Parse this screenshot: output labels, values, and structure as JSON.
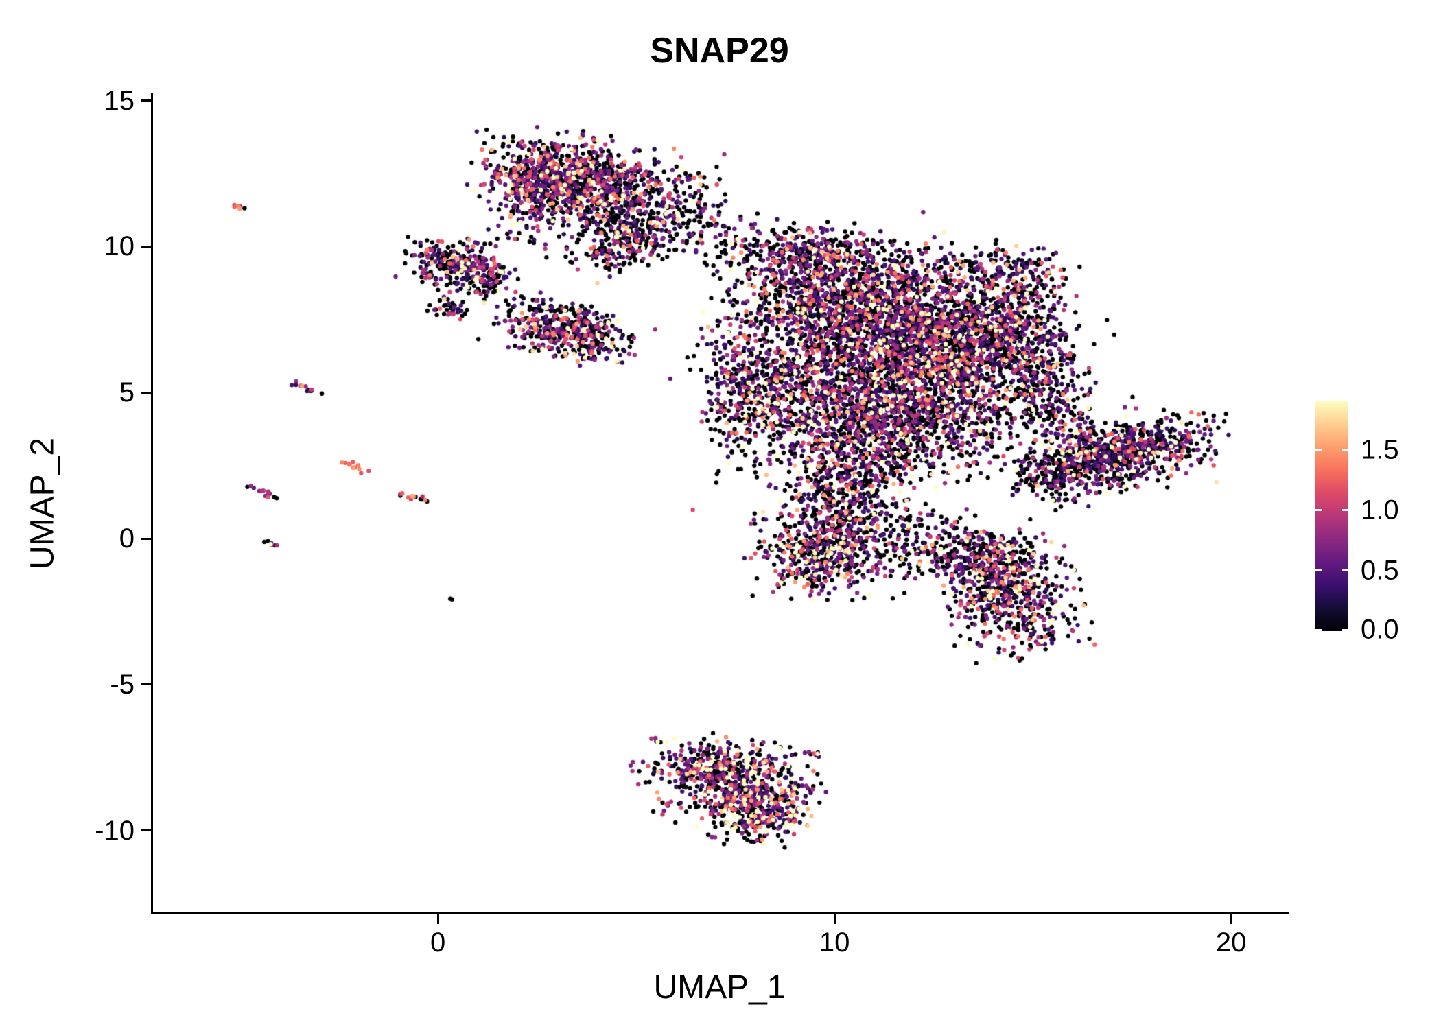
{
  "title": "SNAP29",
  "colors": {
    "background": "#ffffff",
    "axis": "#000000",
    "text": "#000000"
  },
  "chart_data": {
    "type": "scatter",
    "title": "SNAP29",
    "xlabel": "UMAP_1",
    "ylabel": "UMAP_2",
    "xlim": [
      -7.2,
      21.4
    ],
    "ylim": [
      -12.8,
      15.25
    ],
    "grid": false,
    "legend_position": "right",
    "x_ticks": [
      {
        "value": 0,
        "label": "0"
      },
      {
        "value": 10,
        "label": "10"
      },
      {
        "value": 20,
        "label": "20"
      }
    ],
    "y_ticks": [
      {
        "value": 15,
        "label": "15"
      },
      {
        "value": 10,
        "label": "10"
      },
      {
        "value": 5,
        "label": "5"
      },
      {
        "value": 0,
        "label": "0"
      },
      {
        "value": -5,
        "label": "-5"
      },
      {
        "value": -10,
        "label": "-10"
      }
    ],
    "colorbar": {
      "vmin": 0.0,
      "vmax": 1.9,
      "ticks": [
        {
          "value": 1.5,
          "label": "1.5"
        },
        {
          "value": 1.0,
          "label": "1.0"
        },
        {
          "value": 0.5,
          "label": "0.5"
        },
        {
          "value": 0.0,
          "label": "0.0"
        }
      ]
    },
    "colormap": [
      {
        "t": 0.0,
        "hex": "#000004"
      },
      {
        "t": 0.1,
        "hex": "#140e36"
      },
      {
        "t": 0.2,
        "hex": "#3b0f70"
      },
      {
        "t": 0.3,
        "hex": "#641a80"
      },
      {
        "t": 0.4,
        "hex": "#8c2981"
      },
      {
        "t": 0.5,
        "hex": "#b73779"
      },
      {
        "t": 0.6,
        "hex": "#de4968"
      },
      {
        "t": 0.7,
        "hex": "#f7705c"
      },
      {
        "t": 0.8,
        "hex": "#fe9f6d"
      },
      {
        "t": 0.9,
        "hex": "#fece91"
      },
      {
        "t": 1.0,
        "hex": "#fcfdbf"
      }
    ],
    "point_radius": 3.2,
    "seed": 1234567,
    "clusters": [
      {
        "name": "top-main",
        "cx": 3.2,
        "cy": 12.4,
        "sx": 1.05,
        "sy": 0.7,
        "rot": -8,
        "n": 700,
        "p0": 0.42,
        "lam": 0.6
      },
      {
        "name": "top-right",
        "cx": 4.9,
        "cy": 11.4,
        "sx": 1.15,
        "sy": 0.85,
        "rot": 0,
        "n": 450,
        "p0": 0.55,
        "lam": 0.55
      },
      {
        "name": "top-left-bulge",
        "cx": 2.3,
        "cy": 11.7,
        "sx": 0.5,
        "sy": 0.8,
        "rot": 0,
        "n": 180,
        "p0": 0.45,
        "lam": 0.6
      },
      {
        "name": "top-tail",
        "cx": 4.7,
        "cy": 10.0,
        "sx": 0.65,
        "sy": 0.5,
        "rot": 20,
        "n": 170,
        "p0": 0.5,
        "lam": 0.55
      },
      {
        "name": "top-bridge",
        "cx": 6.6,
        "cy": 10.4,
        "sx": 0.75,
        "sy": 0.5,
        "rot": 0,
        "n": 60,
        "p0": 0.6,
        "lam": 0.5
      },
      {
        "name": "upper-left-blob",
        "cx": 0.4,
        "cy": 9.4,
        "sx": 0.6,
        "sy": 0.45,
        "rot": -15,
        "n": 230,
        "p0": 0.5,
        "lam": 0.55
      },
      {
        "name": "upper-left-blob-b",
        "cx": 1.15,
        "cy": 8.85,
        "sx": 0.4,
        "sy": 0.35,
        "rot": 0,
        "n": 90,
        "p0": 0.5,
        "lam": 0.55
      },
      {
        "name": "upper-left-dot",
        "cx": 0.3,
        "cy": 7.9,
        "sx": 0.28,
        "sy": 0.18,
        "rot": 0,
        "n": 40,
        "p0": 0.5,
        "lam": 0.5
      },
      {
        "name": "mid-left-cluster",
        "cx": 3.3,
        "cy": 7.1,
        "sx": 0.9,
        "sy": 0.48,
        "rot": -22,
        "n": 430,
        "p0": 0.42,
        "lam": 0.65
      },
      {
        "name": "main-nw",
        "cx": 10.3,
        "cy": 8.2,
        "sx": 1.35,
        "sy": 1.05,
        "rot": 0,
        "n": 1150,
        "p0": 0.5,
        "lam": 0.6
      },
      {
        "name": "main-core",
        "cx": 12.4,
        "cy": 6.5,
        "sx": 1.45,
        "sy": 1.25,
        "rot": 0,
        "n": 1450,
        "p0": 0.5,
        "lam": 0.6
      },
      {
        "name": "main-w",
        "cx": 9.3,
        "cy": 5.2,
        "sx": 1.05,
        "sy": 1.15,
        "rot": 0,
        "n": 700,
        "p0": 0.5,
        "lam": 0.6
      },
      {
        "name": "main-s",
        "cx": 11.3,
        "cy": 3.9,
        "sx": 1.25,
        "sy": 0.95,
        "rot": 0,
        "n": 620,
        "p0": 0.52,
        "lam": 0.6
      },
      {
        "name": "main-e",
        "cx": 14.0,
        "cy": 7.3,
        "sx": 0.95,
        "sy": 1.05,
        "rot": 0,
        "n": 520,
        "p0": 0.5,
        "lam": 0.6
      },
      {
        "name": "main-e-arm",
        "cx": 15.3,
        "cy": 5.4,
        "sx": 0.55,
        "sy": 1.4,
        "rot": 12,
        "n": 330,
        "p0": 0.52,
        "lam": 0.55
      },
      {
        "name": "main-se",
        "cx": 13.2,
        "cy": 4.2,
        "sx": 1.1,
        "sy": 0.9,
        "rot": 0,
        "n": 260,
        "p0": 0.55,
        "lam": 0.55
      },
      {
        "name": "main-ne-wing",
        "cx": 14.3,
        "cy": 9.2,
        "sx": 0.8,
        "sy": 0.45,
        "rot": -10,
        "n": 160,
        "p0": 0.5,
        "lam": 0.55
      },
      {
        "name": "main-w-arm",
        "cx": 7.6,
        "cy": 5.2,
        "sx": 0.5,
        "sy": 1.4,
        "rot": 8,
        "n": 260,
        "p0": 0.48,
        "lam": 0.6
      },
      {
        "name": "main-n-edge",
        "cx": 9.0,
        "cy": 9.7,
        "sx": 0.9,
        "sy": 0.55,
        "rot": 0,
        "n": 260,
        "p0": 0.5,
        "lam": 0.55
      },
      {
        "name": "main-s-lobe",
        "cx": 10.2,
        "cy": 2.1,
        "sx": 0.85,
        "sy": 0.8,
        "rot": 0,
        "n": 300,
        "p0": 0.5,
        "lam": 0.6
      },
      {
        "name": "main-halo",
        "cx": 11.5,
        "cy": 5.8,
        "sx": 2.7,
        "sy": 2.4,
        "rot": 0,
        "n": 320,
        "p0": 0.6,
        "lam": 0.5
      },
      {
        "name": "bridge-south",
        "cx": 10.0,
        "cy": 0.9,
        "sx": 0.45,
        "sy": 0.6,
        "rot": 0,
        "n": 70,
        "p0": 0.55,
        "lam": 0.5
      },
      {
        "name": "right-wing",
        "cx": 17.2,
        "cy": 2.9,
        "sx": 1.15,
        "sy": 0.5,
        "rot": 16,
        "n": 650,
        "p0": 0.5,
        "lam": 0.6
      },
      {
        "name": "right-wing-halo",
        "cx": 17.0,
        "cy": 3.0,
        "sx": 1.5,
        "sy": 0.8,
        "rot": 16,
        "n": 140,
        "p0": 0.6,
        "lam": 0.5
      },
      {
        "name": "right-wing-tip",
        "cx": 15.4,
        "cy": 1.9,
        "sx": 0.5,
        "sy": 0.4,
        "rot": 0,
        "n": 90,
        "p0": 0.55,
        "lam": 0.55
      },
      {
        "name": "south-blob",
        "cx": 9.7,
        "cy": -0.4,
        "sx": 0.9,
        "sy": 0.75,
        "rot": 0,
        "n": 480,
        "p0": 0.48,
        "lam": 0.65
      },
      {
        "name": "south-trail",
        "cx": 11.6,
        "cy": 0.1,
        "sx": 1.1,
        "sy": 0.6,
        "rot": -5,
        "n": 180,
        "p0": 0.6,
        "lam": 0.5
      },
      {
        "name": "south-trail-b",
        "cx": 12.9,
        "cy": -0.7,
        "sx": 0.7,
        "sy": 0.45,
        "rot": -20,
        "n": 110,
        "p0": 0.55,
        "lam": 0.55
      },
      {
        "name": "southeast-blob",
        "cx": 14.5,
        "cy": -1.9,
        "sx": 0.8,
        "sy": 1.0,
        "rot": 10,
        "n": 560,
        "p0": 0.45,
        "lam": 0.65
      },
      {
        "name": "southeast-neck",
        "cx": 13.9,
        "cy": -0.5,
        "sx": 0.55,
        "sy": 0.4,
        "rot": 0,
        "n": 110,
        "p0": 0.5,
        "lam": 0.6
      },
      {
        "name": "bottom-top-edge",
        "cx": 7.0,
        "cy": -7.8,
        "sx": 0.95,
        "sy": 0.45,
        "rot": -5,
        "n": 300,
        "p0": 0.42,
        "lam": 0.7
      },
      {
        "name": "bottom-core",
        "cx": 8.0,
        "cy": -9.2,
        "sx": 0.65,
        "sy": 0.6,
        "rot": 0,
        "n": 360,
        "p0": 0.4,
        "lam": 0.75
      },
      {
        "name": "bottom-fill",
        "cx": 7.6,
        "cy": -8.4,
        "sx": 1.05,
        "sy": 0.7,
        "rot": -10,
        "n": 240,
        "p0": 0.45,
        "lam": 0.7
      },
      {
        "name": "bottom-outlier",
        "cx": 9.5,
        "cy": -7.4,
        "sx": 0.2,
        "sy": 0.15,
        "rot": 0,
        "n": 8,
        "p0": 0.5,
        "lam": 0.5
      },
      {
        "name": "streak-1",
        "cx": -5.05,
        "cy": 11.35,
        "sx": 0.12,
        "sy": 0.04,
        "rot": -25,
        "n": 6,
        "p0": 0.1,
        "lam": 0.6,
        "vr": [
          0.9,
          1.5
        ]
      },
      {
        "name": "streak-2",
        "cx": -3.35,
        "cy": 5.15,
        "sx": 0.22,
        "sy": 0.05,
        "rot": -30,
        "n": 14,
        "p0": 0.45,
        "lam": 0.7
      },
      {
        "name": "streak-3",
        "cx": -4.45,
        "cy": 1.6,
        "sx": 0.24,
        "sy": 0.06,
        "rot": -32,
        "n": 14,
        "p0": 0.25,
        "lam": 0.6,
        "vr": [
          0.5,
          1.3
        ]
      },
      {
        "name": "streak-4",
        "cx": -2.15,
        "cy": 2.5,
        "sx": 0.24,
        "sy": 0.06,
        "rot": -32,
        "n": 12,
        "p0": 0.1,
        "lam": 0.6,
        "vr": [
          0.9,
          1.6
        ]
      },
      {
        "name": "streak-5",
        "cx": -0.5,
        "cy": 1.4,
        "sx": 0.32,
        "sy": 0.06,
        "rot": -18,
        "n": 14,
        "p0": 0.4,
        "lam": 0.6,
        "vr": [
          0.8,
          1.6
        ]
      },
      {
        "name": "streak-6",
        "cx": -4.25,
        "cy": -0.15,
        "sx": 0.12,
        "sy": 0.04,
        "rot": -30,
        "n": 7,
        "p0": 0.6,
        "lam": 0.6
      },
      {
        "name": "dot-outlier",
        "cx": 0.32,
        "cy": -2.1,
        "sx": 0.04,
        "sy": 0.03,
        "rot": 0,
        "n": 2,
        "p0": 1.0,
        "lam": 0.5
      }
    ]
  }
}
